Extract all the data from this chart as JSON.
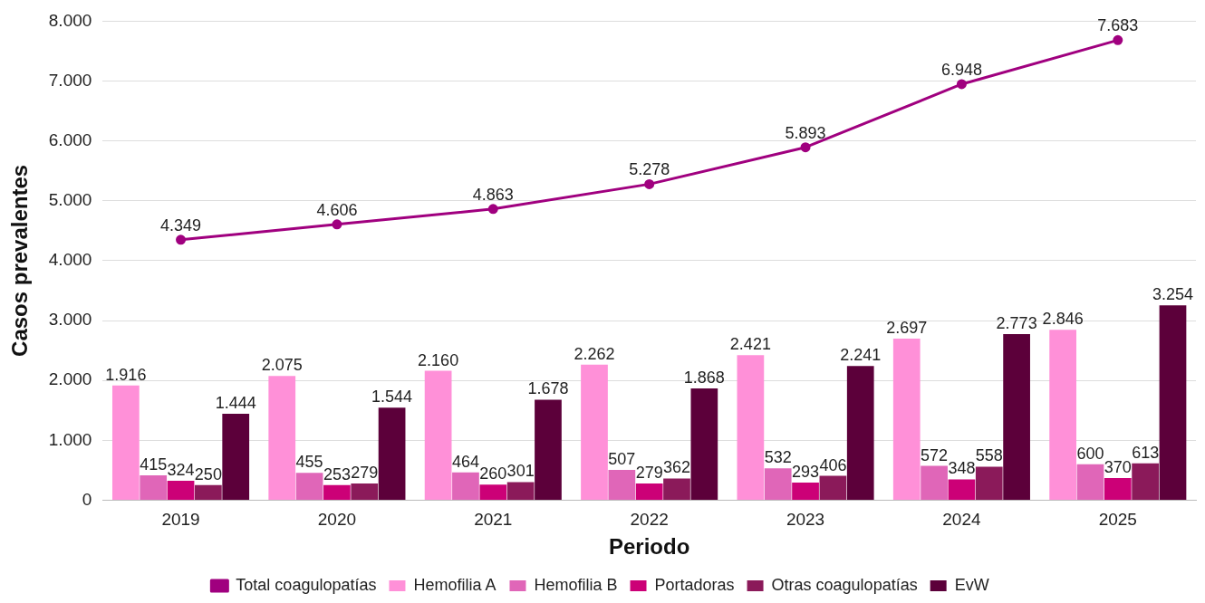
{
  "chart_data": {
    "type": "bar",
    "xlabel": "Periodo",
    "ylabel": "Casos prevalentes",
    "categories": [
      "2019",
      "2020",
      "2021",
      "2022",
      "2023",
      "2024",
      "2025"
    ],
    "series": [
      {
        "name": "Hemofilia A",
        "color": "#ff90d8",
        "values": [
          1916,
          2075,
          2160,
          2262,
          2421,
          2697,
          2846
        ],
        "value_labels": [
          "1.916",
          "2.075",
          "2.160",
          "2.262",
          "2.421",
          "2.697",
          "2.846"
        ]
      },
      {
        "name": "Hemofilia B",
        "color": "#e066b8",
        "values": [
          415,
          455,
          464,
          507,
          532,
          572,
          600
        ],
        "value_labels": [
          "415",
          "455",
          "464",
          "507",
          "532",
          "572",
          "600"
        ]
      },
      {
        "name": "Portadoras",
        "color": "#cc0077",
        "values": [
          324,
          253,
          260,
          279,
          293,
          348,
          370
        ],
        "value_labels": [
          "324",
          "253",
          "260",
          "279",
          "293",
          "348",
          "370"
        ]
      },
      {
        "name": "Otras coagulopatías",
        "color": "#8b1a5a",
        "values": [
          250,
          279,
          301,
          362,
          406,
          558,
          613
        ],
        "value_labels": [
          "250",
          "279",
          "301",
          "362",
          "406",
          "558",
          "613"
        ]
      },
      {
        "name": "EvW",
        "color": "#5c003a",
        "values": [
          1444,
          1544,
          1678,
          1868,
          2241,
          2773,
          3254
        ],
        "value_labels": [
          "1.444",
          "1.544",
          "1.678",
          "1.868",
          "2.241",
          "2.773",
          "3.254"
        ]
      },
      {
        "name": "Total coagulopatías",
        "type": "line",
        "color": "#a0007f",
        "marker": "circle",
        "values": [
          4349,
          4606,
          4863,
          5278,
          5893,
          6948,
          7683
        ],
        "value_labels": [
          "4.349",
          "4.606",
          "4.863",
          "5.278",
          "5.893",
          "6.948",
          "7.683"
        ]
      }
    ],
    "ylim": [
      0,
      8000
    ],
    "yticks": [
      0,
      {
        "value": 1000,
        "label": "1.000"
      },
      {
        "value": 2000,
        "label": "2.000"
      },
      {
        "value": 3000,
        "label": "3.000"
      },
      {
        "value": 4000,
        "label": "4.000"
      },
      {
        "value": 5000,
        "label": "5.000"
      },
      {
        "value": 6000,
        "label": "6.000"
      },
      {
        "value": 7000,
        "label": "7.000"
      },
      {
        "value": 8000,
        "label": "8.000"
      }
    ],
    "grid": "y",
    "legend": "bottom"
  }
}
